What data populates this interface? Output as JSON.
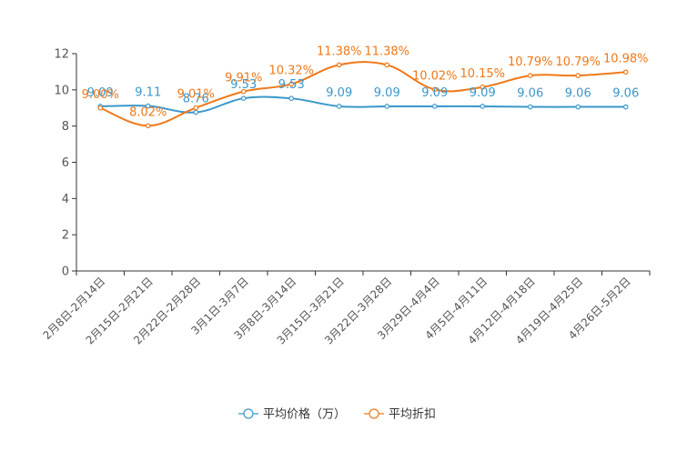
{
  "chart_data": {
    "type": "line",
    "title": "",
    "xlabel": "",
    "ylabel": "",
    "ylim": [
      0,
      12
    ],
    "yticks": [
      0,
      2,
      4,
      6,
      8,
      10,
      12
    ],
    "categories": [
      "2月8日-2月14日",
      "2月15日-2月21日",
      "2月22日-2月28日",
      "3月1日-3月7日",
      "3月8日-3月14日",
      "3月15日-3月21日",
      "3月22日-3月28日",
      "3月29日-4月4日",
      "4月5日-4月11日",
      "4月12日-4月18日",
      "4月19日-4月25日",
      "4月26日-5月2日"
    ],
    "series": [
      {
        "name": "平均价格（万）",
        "color": "#3a97c9",
        "values": [
          9.09,
          9.11,
          8.76,
          9.53,
          9.53,
          9.09,
          9.09,
          9.09,
          9.09,
          9.06,
          9.06,
          9.06
        ],
        "labels": [
          "9.09",
          "9.11",
          "8.76",
          "9.53",
          "9.53",
          "9.09",
          "9.09",
          "9.09",
          "9.09",
          "9.06",
          "9.06",
          "9.06"
        ]
      },
      {
        "name": "平均折扣",
        "color": "#f07818",
        "values": [
          9.0,
          8.02,
          9.01,
          9.91,
          10.32,
          11.38,
          11.38,
          10.02,
          10.15,
          10.79,
          10.79,
          10.98
        ],
        "labels": [
          "9.00%",
          "8.02%",
          "9.01%",
          "9.91%",
          "10.32%",
          "11.38%",
          "11.38%",
          "10.02%",
          "10.15%",
          "10.79%",
          "10.79%",
          "10.98%"
        ]
      }
    ],
    "legend_position": "bottom-center"
  }
}
